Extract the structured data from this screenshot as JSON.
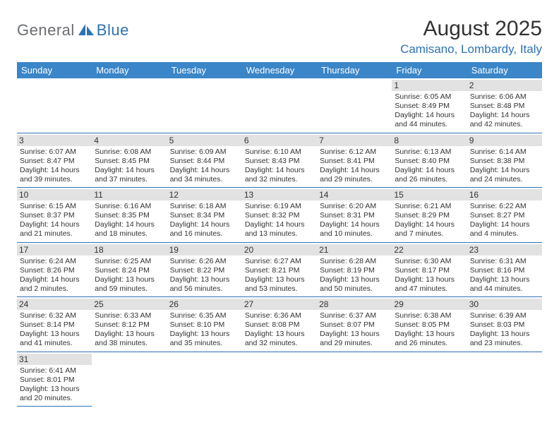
{
  "logo": {
    "part1": "General",
    "part2": "Blue"
  },
  "title": "August 2025",
  "location": "Camisano, Lombardy, Italy",
  "colors": {
    "header_bg": "#3a86c8",
    "accent": "#2d72b5",
    "daynum_bg": "#e2e2e2",
    "text": "#333333",
    "logo_gray": "#6a6c70"
  },
  "weekdays": [
    "Sunday",
    "Monday",
    "Tuesday",
    "Wednesday",
    "Thursday",
    "Friday",
    "Saturday"
  ],
  "weeks": [
    [
      null,
      null,
      null,
      null,
      null,
      {
        "n": "1",
        "sunrise": "6:05 AM",
        "sunset": "8:49 PM",
        "daylight": "14 hours and 44 minutes."
      },
      {
        "n": "2",
        "sunrise": "6:06 AM",
        "sunset": "8:48 PM",
        "daylight": "14 hours and 42 minutes."
      }
    ],
    [
      {
        "n": "3",
        "sunrise": "6:07 AM",
        "sunset": "8:47 PM",
        "daylight": "14 hours and 39 minutes."
      },
      {
        "n": "4",
        "sunrise": "6:08 AM",
        "sunset": "8:45 PM",
        "daylight": "14 hours and 37 minutes."
      },
      {
        "n": "5",
        "sunrise": "6:09 AM",
        "sunset": "8:44 PM",
        "daylight": "14 hours and 34 minutes."
      },
      {
        "n": "6",
        "sunrise": "6:10 AM",
        "sunset": "8:43 PM",
        "daylight": "14 hours and 32 minutes."
      },
      {
        "n": "7",
        "sunrise": "6:12 AM",
        "sunset": "8:41 PM",
        "daylight": "14 hours and 29 minutes."
      },
      {
        "n": "8",
        "sunrise": "6:13 AM",
        "sunset": "8:40 PM",
        "daylight": "14 hours and 26 minutes."
      },
      {
        "n": "9",
        "sunrise": "6:14 AM",
        "sunset": "8:38 PM",
        "daylight": "14 hours and 24 minutes."
      }
    ],
    [
      {
        "n": "10",
        "sunrise": "6:15 AM",
        "sunset": "8:37 PM",
        "daylight": "14 hours and 21 minutes."
      },
      {
        "n": "11",
        "sunrise": "6:16 AM",
        "sunset": "8:35 PM",
        "daylight": "14 hours and 18 minutes."
      },
      {
        "n": "12",
        "sunrise": "6:18 AM",
        "sunset": "8:34 PM",
        "daylight": "14 hours and 16 minutes."
      },
      {
        "n": "13",
        "sunrise": "6:19 AM",
        "sunset": "8:32 PM",
        "daylight": "14 hours and 13 minutes."
      },
      {
        "n": "14",
        "sunrise": "6:20 AM",
        "sunset": "8:31 PM",
        "daylight": "14 hours and 10 minutes."
      },
      {
        "n": "15",
        "sunrise": "6:21 AM",
        "sunset": "8:29 PM",
        "daylight": "14 hours and 7 minutes."
      },
      {
        "n": "16",
        "sunrise": "6:22 AM",
        "sunset": "8:27 PM",
        "daylight": "14 hours and 4 minutes."
      }
    ],
    [
      {
        "n": "17",
        "sunrise": "6:24 AM",
        "sunset": "8:26 PM",
        "daylight": "14 hours and 2 minutes."
      },
      {
        "n": "18",
        "sunrise": "6:25 AM",
        "sunset": "8:24 PM",
        "daylight": "13 hours and 59 minutes."
      },
      {
        "n": "19",
        "sunrise": "6:26 AM",
        "sunset": "8:22 PM",
        "daylight": "13 hours and 56 minutes."
      },
      {
        "n": "20",
        "sunrise": "6:27 AM",
        "sunset": "8:21 PM",
        "daylight": "13 hours and 53 minutes."
      },
      {
        "n": "21",
        "sunrise": "6:28 AM",
        "sunset": "8:19 PM",
        "daylight": "13 hours and 50 minutes."
      },
      {
        "n": "22",
        "sunrise": "6:30 AM",
        "sunset": "8:17 PM",
        "daylight": "13 hours and 47 minutes."
      },
      {
        "n": "23",
        "sunrise": "6:31 AM",
        "sunset": "8:16 PM",
        "daylight": "13 hours and 44 minutes."
      }
    ],
    [
      {
        "n": "24",
        "sunrise": "6:32 AM",
        "sunset": "8:14 PM",
        "daylight": "13 hours and 41 minutes."
      },
      {
        "n": "25",
        "sunrise": "6:33 AM",
        "sunset": "8:12 PM",
        "daylight": "13 hours and 38 minutes."
      },
      {
        "n": "26",
        "sunrise": "6:35 AM",
        "sunset": "8:10 PM",
        "daylight": "13 hours and 35 minutes."
      },
      {
        "n": "27",
        "sunrise": "6:36 AM",
        "sunset": "8:08 PM",
        "daylight": "13 hours and 32 minutes."
      },
      {
        "n": "28",
        "sunrise": "6:37 AM",
        "sunset": "8:07 PM",
        "daylight": "13 hours and 29 minutes."
      },
      {
        "n": "29",
        "sunrise": "6:38 AM",
        "sunset": "8:05 PM",
        "daylight": "13 hours and 26 minutes."
      },
      {
        "n": "30",
        "sunrise": "6:39 AM",
        "sunset": "8:03 PM",
        "daylight": "13 hours and 23 minutes."
      }
    ],
    [
      {
        "n": "31",
        "sunrise": "6:41 AM",
        "sunset": "8:01 PM",
        "daylight": "13 hours and 20 minutes."
      },
      null,
      null,
      null,
      null,
      null,
      null
    ]
  ],
  "labels": {
    "sunrise": "Sunrise:",
    "sunset": "Sunset:",
    "daylight": "Daylight:"
  }
}
